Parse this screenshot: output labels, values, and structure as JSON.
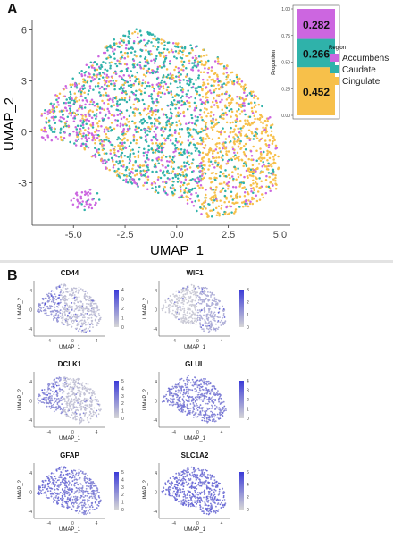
{
  "panels": {
    "a": "A",
    "b": "B"
  },
  "colors": {
    "accumbens": "#cc66e0",
    "caudate": "#2fb2aa",
    "cingulate": "#f7c04a",
    "feature_high": "#3b3bd8",
    "feature_low": "#d6d6d6"
  },
  "chart_data": [
    {
      "type": "scatter",
      "xlabel": "UMAP_1",
      "ylabel": "UMAP_2",
      "xticks": [
        "-5.0",
        "-2.5",
        "0.0",
        "2.5",
        "5.0"
      ],
      "yticks": [
        "-3",
        "0",
        "3",
        "6"
      ],
      "xlim": [
        -7,
        5.5
      ],
      "ylim": [
        -5.5,
        6.6
      ],
      "grid": false,
      "series": [
        {
          "name": "Accumbens",
          "color": "#cc66e0"
        },
        {
          "name": "Caudate",
          "color": "#2fb2aa"
        },
        {
          "name": "Cingulate",
          "color": "#f7c04a"
        }
      ]
    },
    {
      "type": "bar",
      "ylabel": "Proportion",
      "yticks": [
        "0.00",
        "0.25",
        "0.50",
        "0.75",
        "1.00"
      ],
      "ylim": [
        0,
        1
      ],
      "legend_title": "Region",
      "legend_position": "right",
      "series": [
        {
          "name": "Accumbens",
          "values": [
            0.282
          ],
          "label": "0.282"
        },
        {
          "name": "Caudate",
          "values": [
            0.266
          ],
          "label": "0.266"
        },
        {
          "name": "Cingulate",
          "values": [
            0.452
          ],
          "label": "0.452"
        }
      ]
    },
    {
      "type": "scatter",
      "title": "CD44",
      "xlabel": "UMAP_1",
      "ylabel": "UMAP_2",
      "xticks": [
        "-4",
        "0",
        "4"
      ],
      "yticks": [
        "-4",
        "0",
        "4"
      ],
      "colorbar_ticks": [
        "0",
        "1",
        "2",
        "3",
        "4"
      ]
    },
    {
      "type": "scatter",
      "title": "WIF1",
      "xlabel": "UMAP_1",
      "ylabel": "UMAP_2",
      "xticks": [
        "-4",
        "0",
        "4"
      ],
      "yticks": [
        "-4",
        "0",
        "4"
      ],
      "colorbar_ticks": [
        "0",
        "1",
        "2",
        "3"
      ]
    },
    {
      "type": "scatter",
      "title": "DCLK1",
      "xlabel": "UMAP_1",
      "ylabel": "UMAP_2",
      "xticks": [
        "-4",
        "0",
        "4"
      ],
      "yticks": [
        "-4",
        "0",
        "4"
      ],
      "colorbar_ticks": [
        "0",
        "1",
        "2",
        "3",
        "4",
        "5"
      ]
    },
    {
      "type": "scatter",
      "title": "GLUL",
      "xlabel": "UMAP_1",
      "ylabel": "UMAP_2",
      "xticks": [
        "-4",
        "0",
        "4"
      ],
      "yticks": [
        "-4",
        "0",
        "4"
      ],
      "colorbar_ticks": [
        "0",
        "1",
        "2",
        "3",
        "4"
      ]
    },
    {
      "type": "scatter",
      "title": "GFAP",
      "xlabel": "UMAP_1",
      "ylabel": "UMAP_2",
      "xticks": [
        "-4",
        "0",
        "4"
      ],
      "yticks": [
        "-4",
        "0",
        "4"
      ],
      "colorbar_ticks": [
        "0",
        "1",
        "2",
        "3",
        "4",
        "5"
      ]
    },
    {
      "type": "scatter",
      "title": "SLC1A2",
      "xlabel": "UMAP_1",
      "ylabel": "UMAP_2",
      "xticks": [
        "-4",
        "0",
        "4"
      ],
      "yticks": [
        "-4",
        "0",
        "4"
      ],
      "colorbar_ticks": [
        "0",
        "2",
        "4",
        "6"
      ]
    }
  ]
}
